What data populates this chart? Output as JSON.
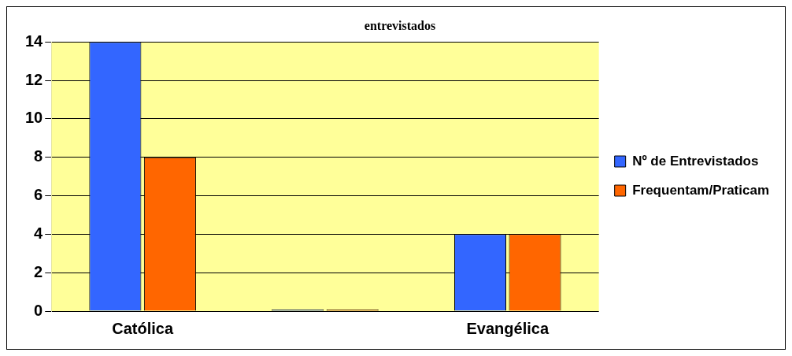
{
  "chart_data": {
    "type": "bar",
    "title": "entrevistados",
    "categories": [
      "Católica",
      null,
      "Evangélica"
    ],
    "series": [
      {
        "name": "Nº de Entrevistados",
        "color": "#3366ff",
        "values": [
          14,
          0,
          4
        ]
      },
      {
        "name": "Frequentam/Praticam",
        "color": "#ff6600",
        "values": [
          8,
          0,
          4
        ]
      }
    ],
    "ylim": [
      0,
      14
    ],
    "yticks": [
      0,
      2,
      4,
      6,
      8,
      10,
      12,
      14
    ],
    "grid": "y",
    "legend": "right"
  }
}
